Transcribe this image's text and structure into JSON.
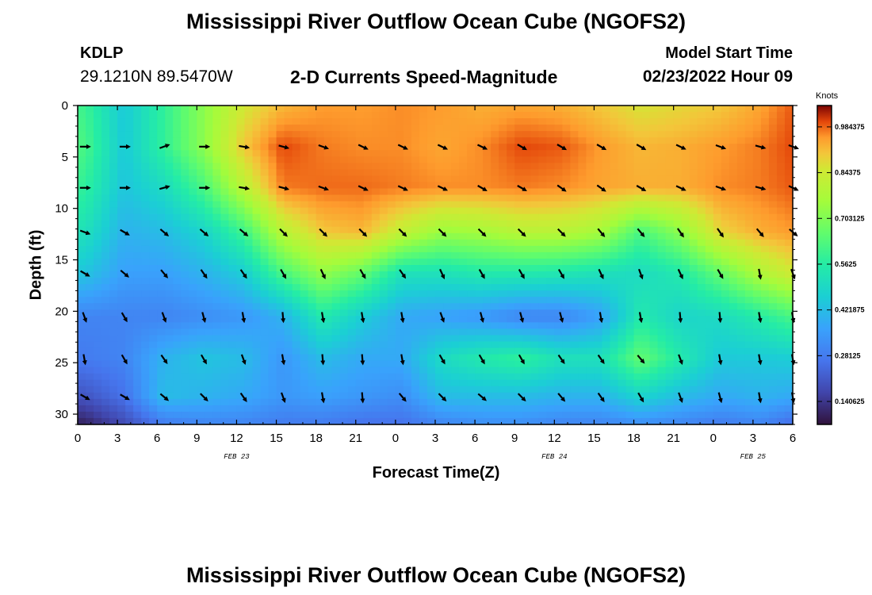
{
  "header": {
    "title": "Mississippi River Outflow Ocean Cube (NGOFS2)",
    "station": "KDLP",
    "coordinates": "29.1210N  89.5470W",
    "chart_title": "2-D Currents Speed-Magnitude",
    "model_start_label": "Model Start Time",
    "model_start_value": "02/23/2022 Hour 09"
  },
  "footer": {
    "title": "Mississippi River Outflow Ocean Cube (NGOFS2)"
  },
  "chart_data": {
    "type": "heatmap",
    "xlabel": "Forecast Time(Z)",
    "ylabel": "Depth (ft)",
    "x_ticks": [
      "0",
      "3",
      "6",
      "9",
      "12",
      "15",
      "18",
      "21",
      "0",
      "3",
      "6",
      "9",
      "12",
      "15",
      "18",
      "21",
      "0",
      "3",
      "6"
    ],
    "x_range_hours": [
      0,
      54
    ],
    "date_labels": [
      {
        "label": "FEB 23",
        "hour": 12
      },
      {
        "label": "FEB 24",
        "hour": 36
      },
      {
        "label": "FEB 25",
        "hour": 51
      }
    ],
    "y_ticks": [
      0,
      5,
      10,
      15,
      20,
      25,
      30
    ],
    "ylim": [
      0,
      31
    ],
    "y_inverted": true,
    "colorbar": {
      "title": "Knots",
      "ticks": [
        "0.140625",
        "0.28125",
        "0.421875",
        "0.5625",
        "0.703125",
        "0.84375",
        "0.984375"
      ],
      "range": [
        0.07,
        1.05
      ]
    },
    "vector_rows_depth_ft": [
      4,
      8,
      12.3,
      16.3,
      20.5,
      24.6,
      28.3
    ],
    "vector_cols_hours": [
      0.5,
      3.5,
      6.5,
      9.5,
      12.5,
      15.5,
      18.5,
      21.5,
      24.5,
      27.5,
      30.5,
      33.5,
      36.5,
      39.5,
      42.5,
      45.5,
      48.5,
      51.5,
      54
    ],
    "speed_grid_rows_depth_ft": [
      0,
      4,
      8,
      12.3,
      16.3,
      20.5,
      24.6,
      28.3,
      31
    ],
    "speed_grid": [
      [
        0.6,
        0.45,
        0.58,
        0.72,
        0.85,
        0.92,
        0.95,
        0.95,
        0.96,
        0.95,
        0.93,
        0.94,
        0.93,
        0.9,
        0.86,
        0.88,
        0.9,
        0.94,
        0.99
      ],
      [
        0.62,
        0.45,
        0.58,
        0.72,
        0.9,
        1.0,
        0.97,
        0.96,
        0.96,
        0.94,
        0.96,
        1.0,
        0.99,
        0.95,
        0.92,
        0.93,
        0.95,
        0.97,
        1.0
      ],
      [
        0.58,
        0.44,
        0.5,
        0.62,
        0.8,
        0.97,
        0.98,
        0.98,
        0.97,
        0.96,
        0.96,
        0.97,
        0.96,
        0.94,
        0.93,
        0.93,
        0.96,
        0.97,
        0.99
      ],
      [
        0.52,
        0.4,
        0.42,
        0.48,
        0.6,
        0.8,
        0.9,
        0.92,
        0.82,
        0.74,
        0.76,
        0.8,
        0.8,
        0.76,
        0.62,
        0.72,
        0.88,
        0.93,
        0.95
      ],
      [
        0.44,
        0.36,
        0.36,
        0.4,
        0.46,
        0.62,
        0.73,
        0.66,
        0.52,
        0.52,
        0.55,
        0.55,
        0.54,
        0.52,
        0.5,
        0.55,
        0.66,
        0.78,
        0.85
      ],
      [
        0.3,
        0.3,
        0.3,
        0.32,
        0.34,
        0.4,
        0.55,
        0.46,
        0.38,
        0.36,
        0.34,
        0.3,
        0.3,
        0.36,
        0.55,
        0.48,
        0.5,
        0.56,
        0.62
      ],
      [
        0.28,
        0.3,
        0.4,
        0.44,
        0.42,
        0.34,
        0.42,
        0.38,
        0.38,
        0.5,
        0.55,
        0.58,
        0.52,
        0.52,
        0.66,
        0.55,
        0.45,
        0.45,
        0.46
      ],
      [
        0.2,
        0.26,
        0.42,
        0.4,
        0.38,
        0.34,
        0.36,
        0.34,
        0.32,
        0.42,
        0.42,
        0.42,
        0.4,
        0.4,
        0.48,
        0.42,
        0.38,
        0.4,
        0.38
      ],
      [
        0.1,
        0.18,
        0.28,
        0.3,
        0.3,
        0.28,
        0.28,
        0.26,
        0.26,
        0.3,
        0.32,
        0.32,
        0.3,
        0.3,
        0.32,
        0.3,
        0.28,
        0.3,
        0.25
      ]
    ],
    "vector_angles_deg": [
      [
        0,
        0,
        -20,
        0,
        10,
        15,
        20,
        25,
        25,
        25,
        25,
        30,
        30,
        30,
        30,
        25,
        20,
        15,
        20
      ],
      [
        0,
        0,
        -15,
        0,
        10,
        15,
        20,
        25,
        25,
        25,
        30,
        30,
        35,
        35,
        30,
        25,
        20,
        15,
        25
      ],
      [
        20,
        30,
        40,
        40,
        40,
        45,
        45,
        45,
        45,
        45,
        45,
        45,
        45,
        50,
        50,
        55,
        55,
        50,
        40
      ],
      [
        30,
        40,
        50,
        55,
        55,
        60,
        65,
        60,
        55,
        65,
        60,
        60,
        60,
        65,
        70,
        65,
        60,
        80,
        70
      ],
      [
        70,
        60,
        70,
        75,
        80,
        85,
        80,
        80,
        80,
        70,
        75,
        75,
        75,
        80,
        80,
        85,
        85,
        80,
        80
      ],
      [
        80,
        60,
        55,
        60,
        70,
        80,
        85,
        85,
        80,
        60,
        60,
        60,
        55,
        55,
        50,
        70,
        80,
        80,
        80
      ],
      [
        30,
        30,
        40,
        45,
        55,
        70,
        80,
        85,
        50,
        45,
        40,
        45,
        50,
        55,
        60,
        70,
        75,
        80,
        80
      ]
    ]
  }
}
